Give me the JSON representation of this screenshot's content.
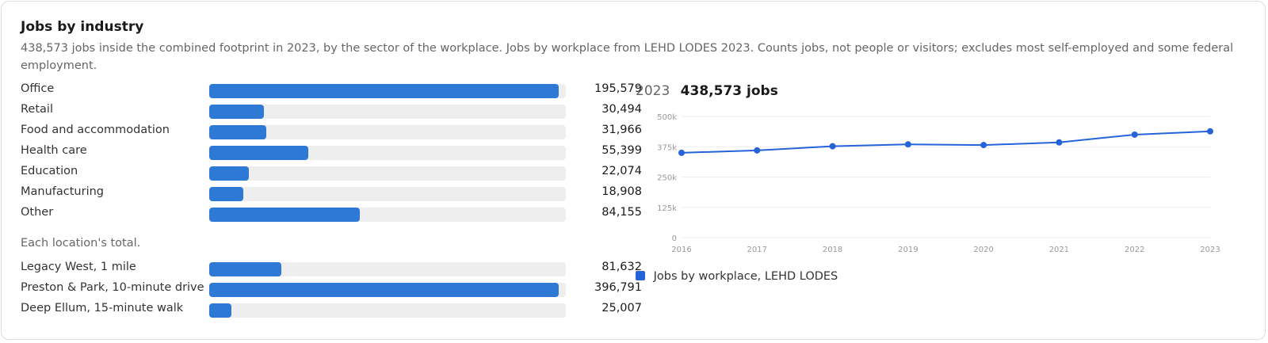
{
  "header": {
    "title": "Jobs by industry",
    "subtitle": "438,573 jobs inside the combined footprint in 2023, by the sector of the workplace. Jobs by workplace from LEHD LODES 2023. Counts jobs, not people or visitors; excludes most self-employed and some federal employment."
  },
  "bar_color": "#2e78d6",
  "track_color": "#eeeeee",
  "industries": [
    {
      "label": "Office",
      "value_text": "195,579",
      "value": 195579
    },
    {
      "label": "Retail",
      "value_text": "30,494",
      "value": 30494
    },
    {
      "label": "Food and accommodation",
      "value_text": "31,966",
      "value": 31966
    },
    {
      "label": "Health care",
      "value_text": "55,399",
      "value": 55399
    },
    {
      "label": "Education",
      "value_text": "22,074",
      "value": 22074
    },
    {
      "label": "Manufacturing",
      "value_text": "18,908",
      "value": 18908
    },
    {
      "label": "Other",
      "value_text": "84,155",
      "value": 84155
    }
  ],
  "locations_note": "Each location's total.",
  "locations": [
    {
      "label": "Legacy West, 1 mile",
      "value_text": "81,632",
      "value": 81632
    },
    {
      "label": "Preston & Park, 10-minute drive",
      "value_text": "396,791",
      "value": 396791
    },
    {
      "label": "Deep Ellum, 15-minute walk",
      "value_text": "25,007",
      "value": 25007
    }
  ],
  "trend": {
    "year": "2023",
    "total": "438,573 jobs",
    "legend": "Jobs by workplace, LEHD LODES",
    "line_color": "#2563d9"
  },
  "chart_data": {
    "type": "line",
    "x": [
      "2016",
      "2017",
      "2018",
      "2019",
      "2020",
      "2021",
      "2022",
      "2023"
    ],
    "series": [
      {
        "name": "Jobs by workplace, LEHD LODES",
        "values": [
          350000,
          360000,
          377000,
          385000,
          382000,
          393000,
          425000,
          438573
        ]
      }
    ],
    "ylim": [
      0,
      500000
    ],
    "yticks": [
      0,
      125000,
      250000,
      375000,
      500000
    ],
    "ytick_labels": [
      "0",
      "125k",
      "250k",
      "375k",
      "500k"
    ],
    "grid": true,
    "legend_position": "bottom-left"
  }
}
